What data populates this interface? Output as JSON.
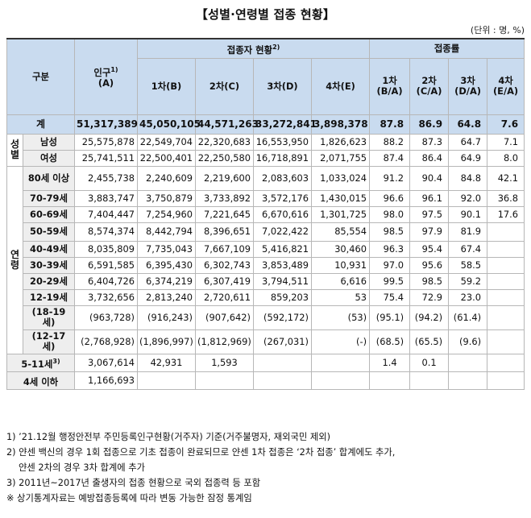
{
  "title": "【성별·연령별 접종 현황】",
  "unit": "(단위 : 명, %)",
  "header": {
    "group": "구분",
    "population": "인구",
    "population_sup": "1)",
    "population_sub": "(A)",
    "vaccinated": "접종자 현황",
    "vaccinated_sup": "2)",
    "rate": "접종률",
    "d1": "1차(B)",
    "d2": "2차(C)",
    "d3": "3차(D)",
    "d4": "4차(E)",
    "r1": "1차",
    "r1s": "(B/A)",
    "r2": "2차",
    "r2s": "(C/A)",
    "r3": "3차",
    "r3s": "(D/A)",
    "r4": "4차",
    "r4s": "(E/A)"
  },
  "total": {
    "label": "계",
    "pop": "51,317,389",
    "d1": "45,050,105",
    "d2": "44,571,263",
    "d3": "33,272,841",
    "d4": "3,898,378",
    "r1": "87.8",
    "r2": "86.9",
    "r3": "64.8",
    "r4": "7.6"
  },
  "sex_label": "성별",
  "sex": [
    {
      "label": "남성",
      "pop": "25,575,878",
      "d1": "22,549,704",
      "d2": "22,320,683",
      "d3": "16,553,950",
      "d4": "1,826,623",
      "r1": "88.2",
      "r2": "87.3",
      "r3": "64.7",
      "r4": "7.1"
    },
    {
      "label": "여성",
      "pop": "25,741,511",
      "d1": "22,500,401",
      "d2": "22,250,580",
      "d3": "16,718,891",
      "d4": "2,071,755",
      "r1": "87.4",
      "r2": "86.4",
      "r3": "64.9",
      "r4": "8.0"
    }
  ],
  "age_label": "연령",
  "age": [
    {
      "label": "80세 이상",
      "pop": "2,455,738",
      "d1": "2,240,609",
      "d2": "2,219,600",
      "d3": "2,083,603",
      "d4": "1,033,024",
      "r1": "91.2",
      "r2": "90.4",
      "r3": "84.8",
      "r4": "42.1"
    },
    {
      "label": "70-79세",
      "pop": "3,883,747",
      "d1": "3,750,879",
      "d2": "3,733,892",
      "d3": "3,572,176",
      "d4": "1,430,015",
      "r1": "96.6",
      "r2": "96.1",
      "r3": "92.0",
      "r4": "36.8"
    },
    {
      "label": "60-69세",
      "pop": "7,404,447",
      "d1": "7,254,960",
      "d2": "7,221,645",
      "d3": "6,670,616",
      "d4": "1,301,725",
      "r1": "98.0",
      "r2": "97.5",
      "r3": "90.1",
      "r4": "17.6"
    },
    {
      "label": "50-59세",
      "pop": "8,574,374",
      "d1": "8,442,794",
      "d2": "8,396,651",
      "d3": "7,022,422",
      "d4": "85,554",
      "r1": "98.5",
      "r2": "97.9",
      "r3": "81.9",
      "r4": ""
    },
    {
      "label": "40-49세",
      "pop": "8,035,809",
      "d1": "7,735,043",
      "d2": "7,667,109",
      "d3": "5,416,821",
      "d4": "30,460",
      "r1": "96.3",
      "r2": "95.4",
      "r3": "67.4",
      "r4": ""
    },
    {
      "label": "30-39세",
      "pop": "6,591,585",
      "d1": "6,395,430",
      "d2": "6,302,743",
      "d3": "3,853,489",
      "d4": "10,931",
      "r1": "97.0",
      "r2": "95.6",
      "r3": "58.5",
      "r4": ""
    },
    {
      "label": "20-29세",
      "pop": "6,404,726",
      "d1": "6,374,219",
      "d2": "6,307,419",
      "d3": "3,794,511",
      "d4": "6,616",
      "r1": "99.5",
      "r2": "98.5",
      "r3": "59.2",
      "r4": ""
    },
    {
      "label": "12-19세",
      "pop": "3,732,656",
      "d1": "2,813,240",
      "d2": "2,720,611",
      "d3": "859,203",
      "d4": "53",
      "r1": "75.4",
      "r2": "72.9",
      "r3": "23.0",
      "r4": ""
    }
  ],
  "sub": [
    {
      "label_a": "(18-19",
      "label_b": "세)",
      "pop": "(963,728)",
      "d1": "(916,243)",
      "d2": "(907,642)",
      "d3": "(592,172)",
      "d4": "(53)",
      "r1": "(95.1)",
      "r2": "(94.2)",
      "r3": "(61.4)",
      "r4": ""
    },
    {
      "label_a": "(12-17",
      "label_b": "세)",
      "pop": "(2,768,928)",
      "d1": "(1,896,997)",
      "d2": "(1,812,969)",
      "d3": "(267,031)",
      "d4": "(-)",
      "r1": "(68.5)",
      "r2": "(65.5)",
      "r3": "(9.6)",
      "r4": ""
    }
  ],
  "kids": [
    {
      "label": "5-11세",
      "sup": "3)",
      "pop": "3,067,614",
      "d1": "42,931",
      "d2": "1,593",
      "d3": "",
      "d4": "",
      "r1": "1.4",
      "r2": "0.1",
      "r3": "",
      "r4": ""
    },
    {
      "label": "4세 이하",
      "sup": "",
      "pop": "1,166,693",
      "d1": "",
      "d2": "",
      "d3": "",
      "d4": "",
      "r1": "",
      "r2": "",
      "r3": "",
      "r4": ""
    }
  ],
  "notes": [
    "1) ’21.12월 행정안전부 주민등록인구현황(거주자) 기준(거주불명자, 재외국민 제외)",
    "2) 얀센 백신의 경우 1회 접종으로 기초 접종이 완료되므로 얀센 1차 접종은 ‘2차 접종’ 합계에도 추가,",
    "얀센 2차의 경우 3차 합계에 추가",
    "3) 2011년~2017년 출생자의 접종 현황으로 국외 접종력 등 포함",
    "※ 상기통계자료는 예방접종등록에 따라 변동 가능한 잠정 통계임"
  ]
}
